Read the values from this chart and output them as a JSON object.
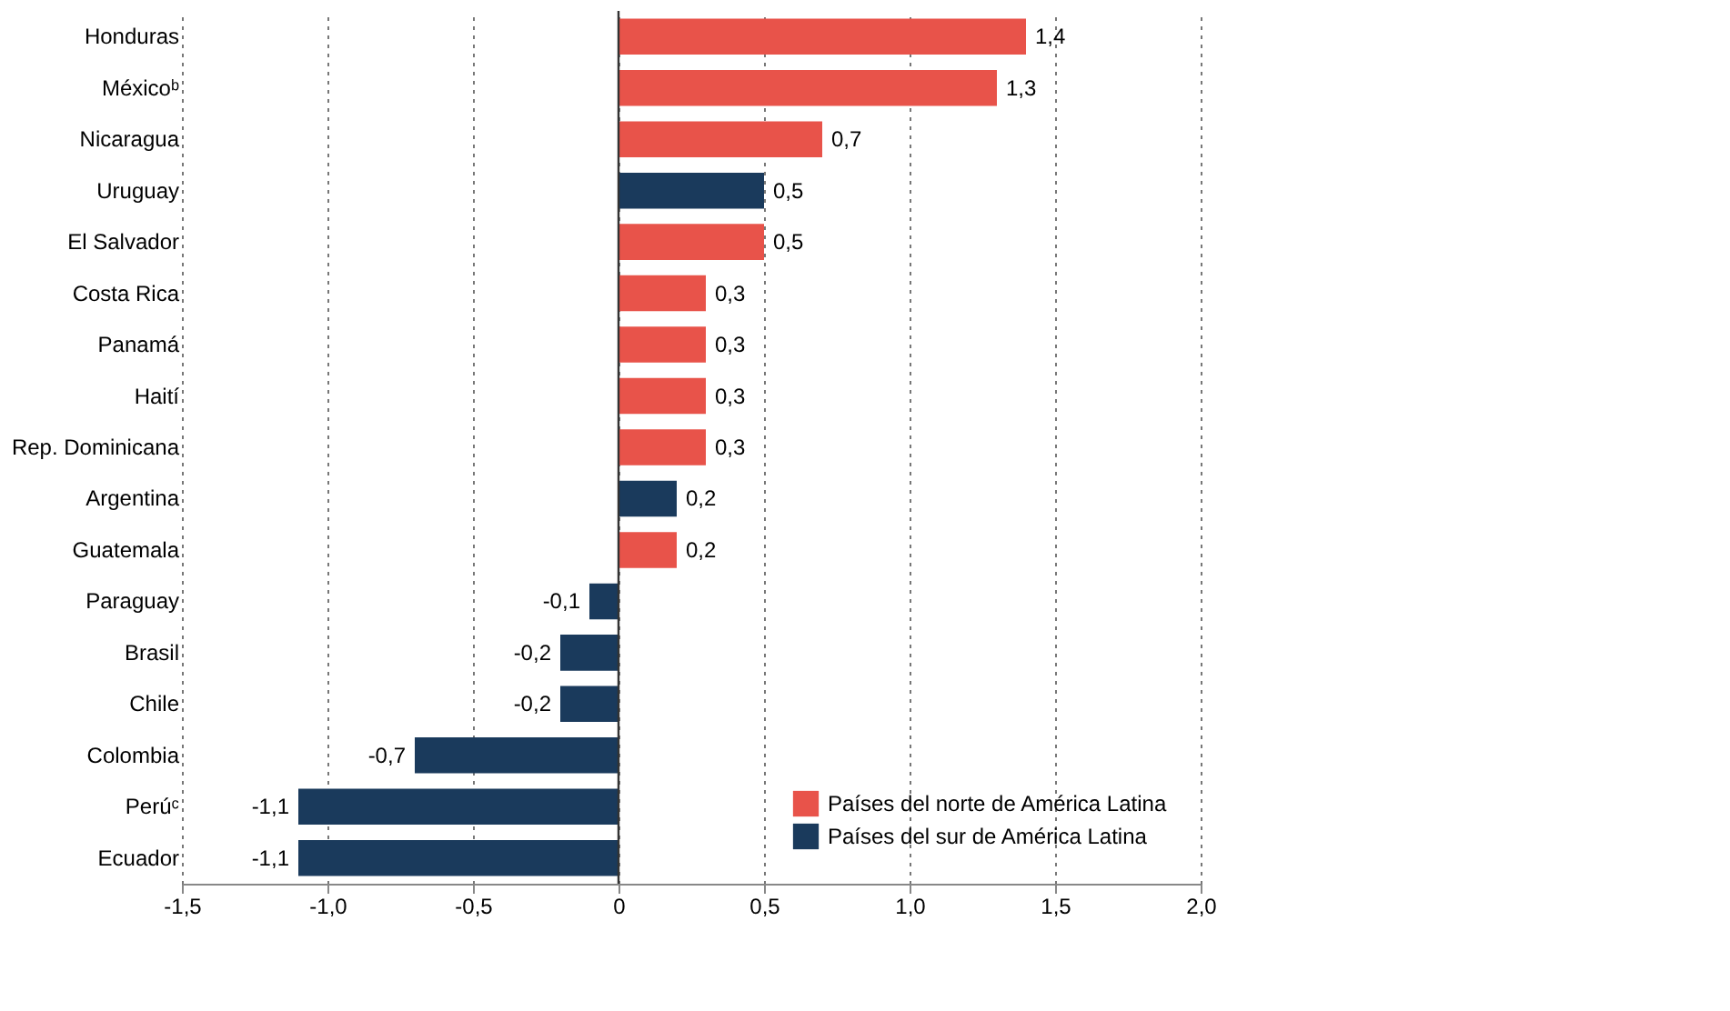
{
  "chart_data": {
    "type": "bar",
    "orientation": "horizontal",
    "categories": [
      "Honduras",
      "Méxicoᵇ",
      "Nicaragua",
      "Uruguay",
      "El Salvador",
      "Costa Rica",
      "Panamá",
      "Haití",
      "Rep. Dominicana",
      "Argentina",
      "Guatemala",
      "Paraguay",
      "Brasil",
      "Chile",
      "Colombia",
      "Perúᶜ",
      "Ecuador"
    ],
    "series": [
      {
        "name": "Países del norte de América Latina",
        "color": "#e8534a",
        "values": [
          1.4,
          1.3,
          0.7,
          null,
          0.5,
          0.3,
          0.3,
          0.3,
          0.3,
          null,
          0.2,
          null,
          null,
          null,
          null,
          null,
          null
        ],
        "value_labels": [
          "1,4",
          "1,3",
          "0,7",
          null,
          "0,5",
          "0,3",
          "0,3",
          "0,3",
          "0,3",
          null,
          "0,2",
          null,
          null,
          null,
          null,
          null,
          null
        ]
      },
      {
        "name": "Países del sur de América Latina",
        "color": "#1a3a5c",
        "values": [
          null,
          null,
          null,
          0.5,
          null,
          null,
          null,
          null,
          null,
          0.2,
          null,
          -0.1,
          -0.2,
          -0.2,
          -0.7,
          -1.1,
          -1.1
        ],
        "value_labels": [
          null,
          null,
          null,
          "0,5",
          null,
          null,
          null,
          null,
          null,
          "0,2",
          null,
          "-0,1",
          "-0,2",
          "-0,2",
          "-0,7",
          "-1,1",
          "-1,1"
        ]
      }
    ],
    "xlim": [
      -1.5,
      2.0
    ],
    "xticks": [
      {
        "value": -1.5,
        "label": "-1,5"
      },
      {
        "value": -1.0,
        "label": "-1,0"
      },
      {
        "value": -0.5,
        "label": "-0,5"
      },
      0,
      {
        "value": 0.5,
        "label": "0,5"
      },
      {
        "value": 1.0,
        "label": "1,0"
      },
      {
        "value": 1.5,
        "label": "1,5"
      },
      {
        "value": 2.0,
        "label": "2,0"
      }
    ],
    "ref_lines": [
      {
        "axis": "x",
        "value": 0,
        "color": "#333333"
      }
    ],
    "grid": "x",
    "line_style": "dotted",
    "legend": "bottom right"
  }
}
